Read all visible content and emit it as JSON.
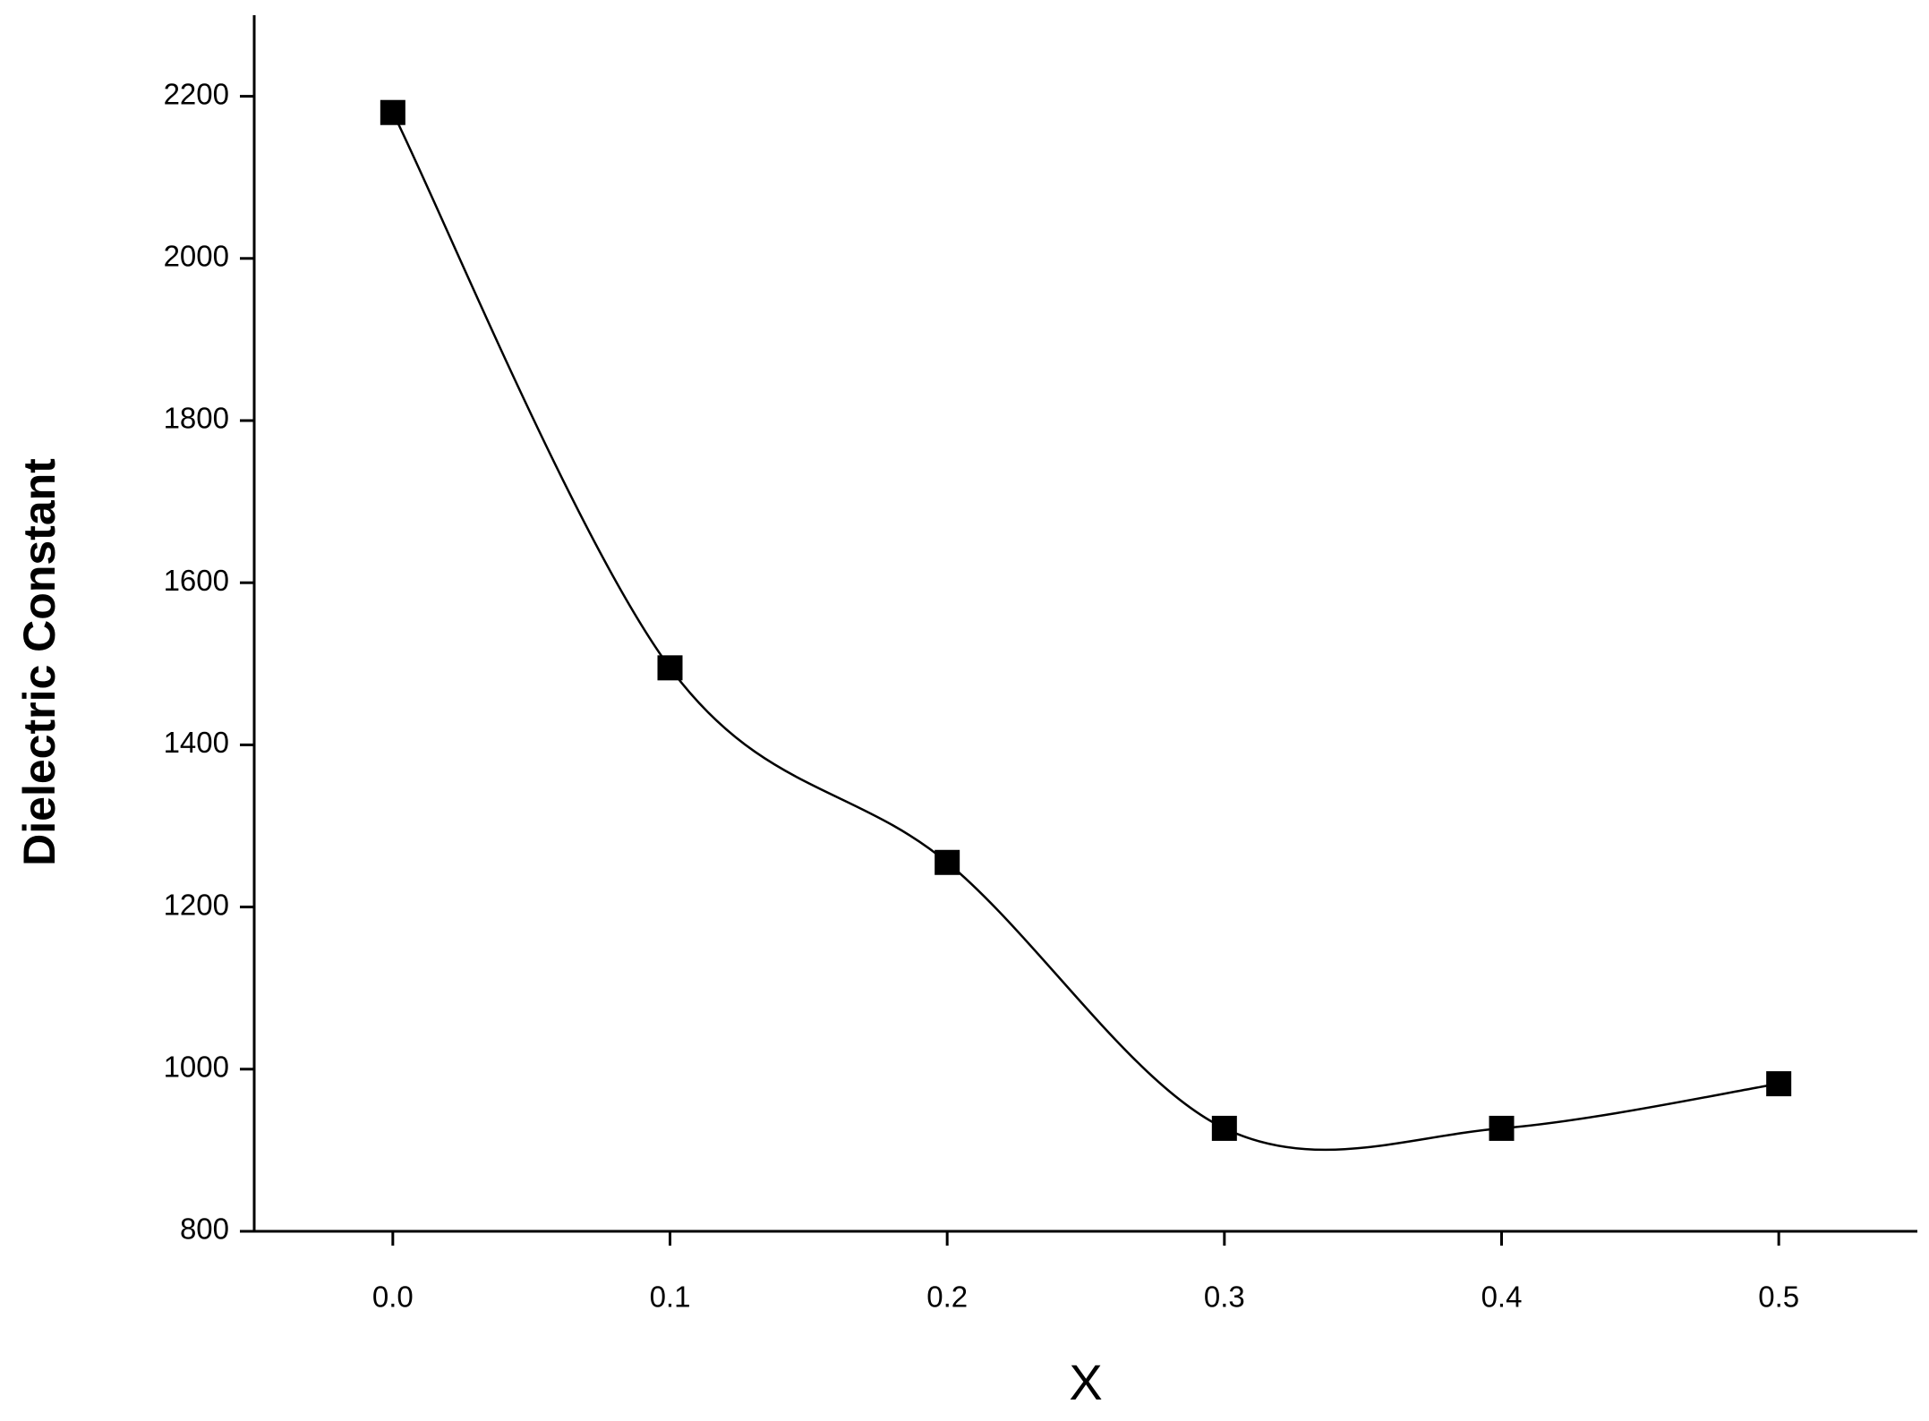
{
  "chart_data": {
    "type": "line",
    "x_label": "X",
    "y_label": "Dielectric Constant",
    "x": [
      0,
      0.1,
      0.2,
      0.3,
      0.4,
      0.5
    ],
    "series": [
      {
        "color": "#000000",
        "values": [
          2180,
          1495,
          1255,
          927,
          927,
          982
        ]
      }
    ],
    "xlim": [
      -0.05,
      0.55
    ],
    "ylim": [
      800,
      2300
    ],
    "xticks": [
      {
        "value": 0,
        "label": "0.0"
      },
      0.1,
      0.2,
      0.3,
      0.4,
      0.5
    ],
    "yticks": [
      800,
      1000,
      1200,
      1400,
      1600,
      1800,
      2000,
      2200
    ],
    "smooth": true,
    "markers": "square"
  }
}
